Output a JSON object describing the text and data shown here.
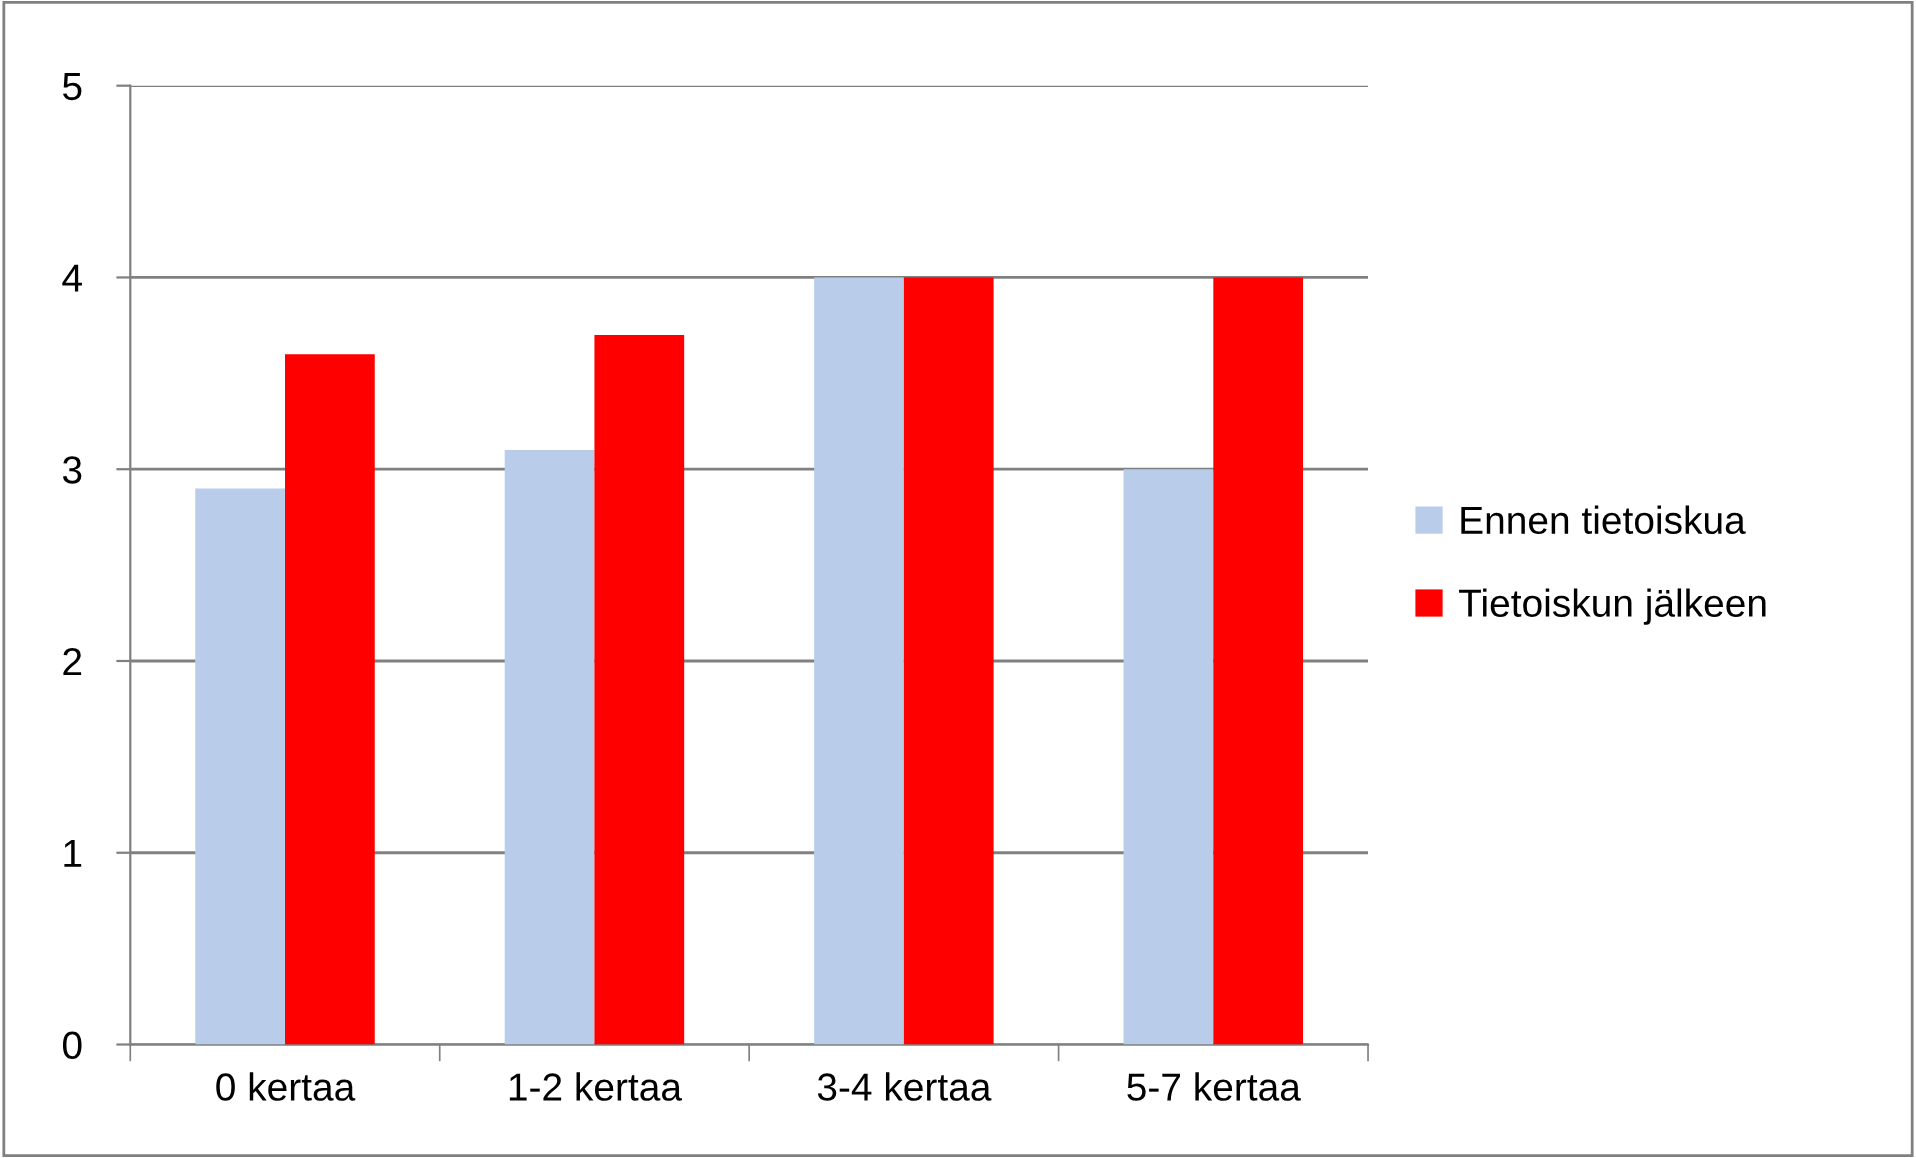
{
  "chart_data": {
    "type": "bar",
    "categories": [
      "0 kertaa",
      "1-2 kertaa",
      "3-4 kertaa",
      "5-7 kertaa"
    ],
    "series": [
      {
        "name": "Ennen tietoiskua",
        "color": "#b9cdeb",
        "values": [
          2.9,
          3.1,
          4.0,
          3.0
        ]
      },
      {
        "name": "Tietoiskun jälkeen",
        "color": "#ff0000",
        "values": [
          3.6,
          3.7,
          4.0,
          4.0
        ]
      }
    ],
    "ylim": [
      0,
      5
    ],
    "yticks": [
      0,
      1,
      2,
      3,
      4,
      5
    ],
    "grid": "y",
    "legend": "right"
  }
}
